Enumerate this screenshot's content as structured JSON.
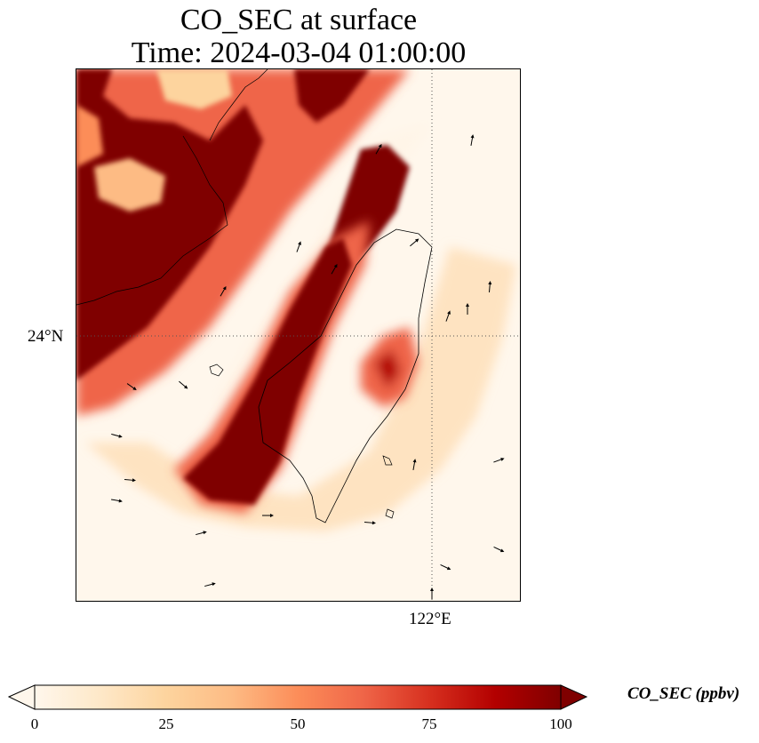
{
  "title": {
    "line1": "CO_SEC at surface",
    "line2": "Time: 2024-03-04 01:00:00"
  },
  "axes": {
    "lat_tick": "24°N",
    "lon_tick": "122°E",
    "gridlines": "dotted"
  },
  "colorbar": {
    "label": "CO_SEC (ppbv)",
    "ticks": [
      "0",
      "25",
      "50",
      "75",
      "100"
    ],
    "min": 0,
    "max": 100,
    "extend": "both",
    "colormap": [
      "#fff7ec",
      "#fee8c8",
      "#fdd49e",
      "#fdbb84",
      "#fc8d59",
      "#ef6548",
      "#d7301f",
      "#b30000",
      "#7f0000"
    ]
  },
  "field": {
    "background_level": 5,
    "plumes": [
      {
        "name": "northwest-continental-plume",
        "level": 100
      },
      {
        "name": "northwest-plume-edge",
        "level": 60
      },
      {
        "name": "central-band",
        "level": 100
      },
      {
        "name": "northeast-band",
        "level": 100
      },
      {
        "name": "eastern-patch",
        "level": 70
      },
      {
        "name": "southern-halo",
        "level": 30
      }
    ]
  },
  "icons": {
    "wind": "wind-vector-arrow-icon",
    "colorbar_ends": "triangle-extend-icon"
  }
}
